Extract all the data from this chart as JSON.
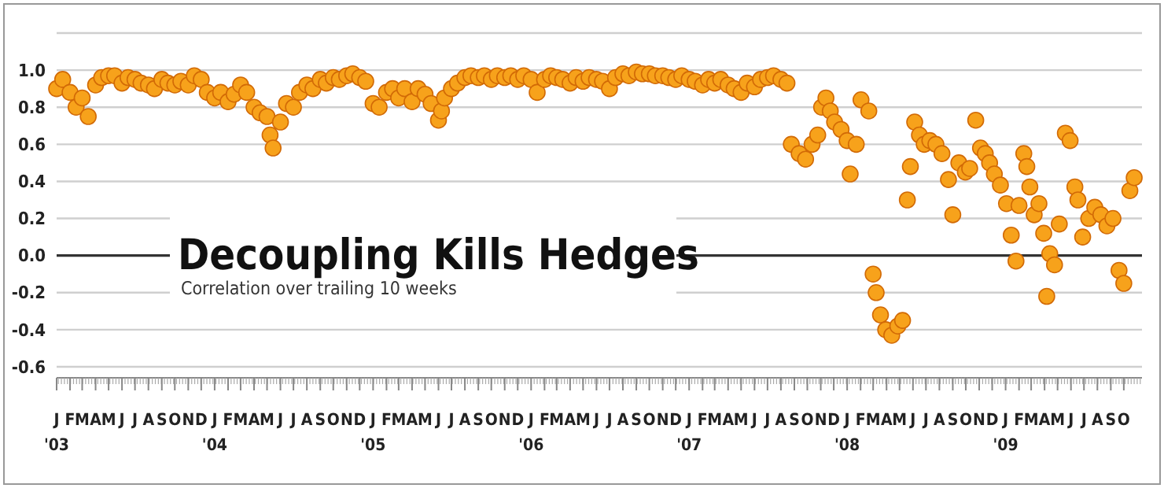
{
  "chart_data": {
    "type": "scatter",
    "title": "Decoupling Kills Hedges",
    "subtitle": "Correlation over trailing 10 weeks",
    "x": [
      "2003-01-01",
      "2003-01-15",
      "2003-02-01",
      "2003-02-15",
      "2003-03-01",
      "2003-03-15",
      "2003-04-01",
      "2003-04-15",
      "2003-05-01",
      "2003-05-15",
      "2003-06-01",
      "2003-06-15",
      "2003-07-01",
      "2003-07-15",
      "2003-08-01",
      "2003-08-15",
      "2003-09-01",
      "2003-09-15",
      "2003-10-01",
      "2003-10-15",
      "2003-11-01",
      "2003-11-15",
      "2003-12-01",
      "2003-12-15",
      "2004-01-01",
      "2004-01-15",
      "2004-02-01",
      "2004-02-15",
      "2004-03-01",
      "2004-03-15",
      "2004-04-01",
      "2004-04-15",
      "2004-05-01",
      "2004-05-08",
      "2004-05-15",
      "2004-06-01",
      "2004-06-15",
      "2004-07-01",
      "2004-07-15",
      "2004-08-01",
      "2004-08-15",
      "2004-09-01",
      "2004-09-15",
      "2004-10-01",
      "2004-10-15",
      "2004-11-01",
      "2004-11-15",
      "2004-12-01",
      "2004-12-15",
      "2005-01-01",
      "2005-01-15",
      "2005-02-01",
      "2005-02-15",
      "2005-03-01",
      "2005-03-15",
      "2005-04-01",
      "2005-04-15",
      "2005-05-01",
      "2005-05-15",
      "2005-06-01",
      "2005-06-08",
      "2005-06-15",
      "2005-07-01",
      "2005-07-15",
      "2005-08-01",
      "2005-08-15",
      "2005-09-01",
      "2005-09-15",
      "2005-10-01",
      "2005-10-15",
      "2005-11-01",
      "2005-11-15",
      "2005-12-01",
      "2005-12-15",
      "2006-01-01",
      "2006-01-15",
      "2006-02-01",
      "2006-02-15",
      "2006-03-01",
      "2006-03-15",
      "2006-04-01",
      "2006-04-15",
      "2006-05-01",
      "2006-05-15",
      "2006-06-01",
      "2006-06-15",
      "2006-07-01",
      "2006-07-15",
      "2006-08-01",
      "2006-08-15",
      "2006-09-01",
      "2006-09-15",
      "2006-10-01",
      "2006-10-15",
      "2006-11-01",
      "2006-11-15",
      "2006-12-01",
      "2006-12-15",
      "2007-01-01",
      "2007-01-15",
      "2007-02-01",
      "2007-02-15",
      "2007-03-01",
      "2007-03-15",
      "2007-04-01",
      "2007-04-15",
      "2007-05-01",
      "2007-05-15",
      "2007-06-01",
      "2007-06-15",
      "2007-07-01",
      "2007-07-15",
      "2007-08-01",
      "2007-08-15",
      "2007-08-25",
      "2007-09-12",
      "2007-09-27",
      "2007-10-12",
      "2007-10-25",
      "2007-11-03",
      "2007-11-13",
      "2007-11-23",
      "2007-12-03",
      "2007-12-18",
      "2008-01-01",
      "2008-01-08",
      "2008-01-22",
      "2008-02-02",
      "2008-02-20",
      "2008-03-01",
      "2008-03-08",
      "2008-03-18",
      "2008-03-30",
      "2008-04-13",
      "2008-04-27",
      "2008-05-08",
      "2008-05-19",
      "2008-05-26",
      "2008-06-05",
      "2008-06-16",
      "2008-06-27",
      "2008-07-10",
      "2008-07-24",
      "2008-08-07",
      "2008-08-22",
      "2008-09-01",
      "2008-09-15",
      "2008-09-30",
      "2008-10-10",
      "2008-10-24",
      "2008-11-04",
      "2008-11-15",
      "2008-11-25",
      "2008-12-06",
      "2008-12-20",
      "2009-01-03",
      "2009-01-14",
      "2009-01-25",
      "2009-02-01",
      "2009-02-12",
      "2009-02-19",
      "2009-02-26",
      "2009-03-08",
      "2009-03-19",
      "2009-03-30",
      "2009-04-06",
      "2009-04-13",
      "2009-04-24",
      "2009-05-05",
      "2009-05-19",
      "2009-05-30",
      "2009-06-10",
      "2009-06-17",
      "2009-06-28",
      "2009-07-12",
      "2009-07-26",
      "2009-08-09",
      "2009-08-23",
      "2009-09-06",
      "2009-09-20",
      "2009-10-01",
      "2009-10-15",
      "2009-10-25"
    ],
    "values": [
      0.9,
      0.95,
      0.88,
      0.8,
      0.85,
      0.75,
      0.92,
      0.96,
      0.97,
      0.97,
      0.93,
      0.96,
      0.95,
      0.93,
      0.92,
      0.9,
      0.95,
      0.93,
      0.92,
      0.94,
      0.92,
      0.97,
      0.95,
      0.88,
      0.85,
      0.88,
      0.83,
      0.87,
      0.92,
      0.88,
      0.8,
      0.77,
      0.75,
      0.65,
      0.58,
      0.72,
      0.82,
      0.8,
      0.88,
      0.92,
      0.9,
      0.95,
      0.93,
      0.96,
      0.95,
      0.97,
      0.98,
      0.96,
      0.94,
      0.82,
      0.8,
      0.88,
      0.9,
      0.85,
      0.9,
      0.83,
      0.9,
      0.87,
      0.82,
      0.73,
      0.78,
      0.85,
      0.9,
      0.93,
      0.96,
      0.97,
      0.96,
      0.97,
      0.95,
      0.97,
      0.96,
      0.97,
      0.95,
      0.97,
      0.95,
      0.88,
      0.95,
      0.97,
      0.96,
      0.95,
      0.93,
      0.96,
      0.94,
      0.96,
      0.95,
      0.94,
      0.9,
      0.96,
      0.98,
      0.97,
      0.99,
      0.98,
      0.98,
      0.97,
      0.97,
      0.96,
      0.95,
      0.97,
      0.95,
      0.94,
      0.92,
      0.95,
      0.93,
      0.95,
      0.92,
      0.9,
      0.88,
      0.93,
      0.91,
      0.95,
      0.96,
      0.97,
      0.95,
      0.93,
      0.6,
      0.55,
      0.52,
      0.6,
      0.65,
      0.8,
      0.85,
      0.78,
      0.72,
      0.68,
      0.62,
      0.44,
      0.6,
      0.84,
      0.78,
      -0.1,
      -0.2,
      -0.32,
      -0.4,
      -0.43,
      -0.38,
      -0.35,
      0.3,
      0.48,
      0.72,
      0.65,
      0.6,
      0.62,
      0.6,
      0.55,
      0.41,
      0.22,
      0.5,
      0.45,
      0.47,
      0.73,
      0.58,
      0.55,
      0.5,
      0.44,
      0.38,
      0.28,
      0.11,
      -0.03,
      0.27,
      0.55,
      0.48,
      0.37,
      0.22,
      0.28,
      0.12,
      -0.22,
      0.01,
      -0.05,
      0.17,
      0.66,
      0.62,
      0.37,
      0.3,
      0.1,
      0.2,
      0.26,
      0.22,
      0.16,
      0.2,
      -0.08,
      -0.15,
      0.35,
      0.42
    ],
    "color": "#f7a21b",
    "marker": "circle",
    "xlim": [
      "2003-01-01",
      "2009-11-12"
    ],
    "xticks": [
      {
        "value": "2003-01-01",
        "label": "J\n'03"
      },
      {
        "value": "2003-02-01",
        "label": "F"
      },
      {
        "value": "2003-03-01",
        "label": "M"
      },
      {
        "value": "2003-04-01",
        "label": "A"
      },
      {
        "value": "2003-05-01",
        "label": "M"
      },
      {
        "value": "2003-06-01",
        "label": "J"
      },
      {
        "value": "2003-07-01",
        "label": "J"
      },
      {
        "value": "2003-08-01",
        "label": "A"
      },
      {
        "value": "2003-09-01",
        "label": "S"
      },
      {
        "value": "2003-10-01",
        "label": "O"
      },
      {
        "value": "2003-11-01",
        "label": "N"
      },
      {
        "value": "2003-12-01",
        "label": "D"
      },
      {
        "value": "2004-01-01",
        "label": "J\n'04"
      },
      {
        "value": "2004-02-01",
        "label": "F"
      },
      {
        "value": "2004-03-01",
        "label": "M"
      },
      {
        "value": "2004-04-01",
        "label": "A"
      },
      {
        "value": "2004-05-01",
        "label": "M"
      },
      {
        "value": "2004-06-01",
        "label": "J"
      },
      {
        "value": "2004-07-01",
        "label": "J"
      },
      {
        "value": "2004-08-01",
        "label": "A"
      },
      {
        "value": "2004-09-01",
        "label": "S"
      },
      {
        "value": "2004-10-01",
        "label": "O"
      },
      {
        "value": "2004-11-01",
        "label": "N"
      },
      {
        "value": "2004-12-01",
        "label": "D"
      },
      {
        "value": "2005-01-01",
        "label": "J\n'05"
      },
      {
        "value": "2005-02-01",
        "label": "F"
      },
      {
        "value": "2005-03-01",
        "label": "M"
      },
      {
        "value": "2005-04-01",
        "label": "A"
      },
      {
        "value": "2005-05-01",
        "label": "M"
      },
      {
        "value": "2005-06-01",
        "label": "J"
      },
      {
        "value": "2005-07-01",
        "label": "J"
      },
      {
        "value": "2005-08-01",
        "label": "A"
      },
      {
        "value": "2005-09-01",
        "label": "S"
      },
      {
        "value": "2005-10-01",
        "label": "O"
      },
      {
        "value": "2005-11-01",
        "label": "N"
      },
      {
        "value": "2005-12-01",
        "label": "D"
      },
      {
        "value": "2006-01-01",
        "label": "J\n'06"
      },
      {
        "value": "2006-02-01",
        "label": "F"
      },
      {
        "value": "2006-03-01",
        "label": "M"
      },
      {
        "value": "2006-04-01",
        "label": "A"
      },
      {
        "value": "2006-05-01",
        "label": "M"
      },
      {
        "value": "2006-06-01",
        "label": "J"
      },
      {
        "value": "2006-07-01",
        "label": "J"
      },
      {
        "value": "2006-08-01",
        "label": "A"
      },
      {
        "value": "2006-09-01",
        "label": "S"
      },
      {
        "value": "2006-10-01",
        "label": "O"
      },
      {
        "value": "2006-11-01",
        "label": "N"
      },
      {
        "value": "2006-12-01",
        "label": "D"
      },
      {
        "value": "2007-01-01",
        "label": "J\n'07"
      },
      {
        "value": "2007-02-01",
        "label": "F"
      },
      {
        "value": "2007-03-01",
        "label": "M"
      },
      {
        "value": "2007-04-01",
        "label": "A"
      },
      {
        "value": "2007-05-01",
        "label": "M"
      },
      {
        "value": "2007-06-01",
        "label": "J"
      },
      {
        "value": "2007-07-01",
        "label": "J"
      },
      {
        "value": "2007-08-01",
        "label": "A"
      },
      {
        "value": "2007-09-01",
        "label": "S"
      },
      {
        "value": "2007-10-01",
        "label": "O"
      },
      {
        "value": "2007-11-01",
        "label": "N"
      },
      {
        "value": "2007-12-01",
        "label": "D"
      },
      {
        "value": "2008-01-01",
        "label": "J\n'08"
      },
      {
        "value": "2008-02-01",
        "label": "F"
      },
      {
        "value": "2008-03-01",
        "label": "M"
      },
      {
        "value": "2008-04-01",
        "label": "A"
      },
      {
        "value": "2008-05-01",
        "label": "M"
      },
      {
        "value": "2008-06-01",
        "label": "J"
      },
      {
        "value": "2008-07-01",
        "label": "J"
      },
      {
        "value": "2008-08-01",
        "label": "A"
      },
      {
        "value": "2008-09-01",
        "label": "S"
      },
      {
        "value": "2008-10-01",
        "label": "O"
      },
      {
        "value": "2008-11-01",
        "label": "N"
      },
      {
        "value": "2008-12-01",
        "label": "D"
      },
      {
        "value": "2009-01-01",
        "label": "J\n'09"
      },
      {
        "value": "2009-02-01",
        "label": "F"
      },
      {
        "value": "2009-03-01",
        "label": "M"
      },
      {
        "value": "2009-04-01",
        "label": "A"
      },
      {
        "value": "2009-05-01",
        "label": "M"
      },
      {
        "value": "2009-06-01",
        "label": "J"
      },
      {
        "value": "2009-07-01",
        "label": "J"
      },
      {
        "value": "2009-08-01",
        "label": "A"
      },
      {
        "value": "2009-09-01",
        "label": "S"
      },
      {
        "value": "2009-10-01",
        "label": "O"
      }
    ],
    "ylim": [
      -0.6,
      1.2
    ],
    "yticks": [
      {
        "value": -0.6,
        "label": "-0.6"
      },
      {
        "value": -0.4,
        "label": "-0.4"
      },
      {
        "value": -0.2,
        "label": "-0.2"
      },
      {
        "value": 0,
        "label": "0.0"
      },
      {
        "value": 0.2,
        "label": "0.2"
      },
      {
        "value": 0.4,
        "label": "0.4"
      },
      {
        "value": 0.6,
        "label": "0.6"
      },
      {
        "value": 0.8,
        "label": "0.8"
      },
      {
        "value": 1,
        "label": "1.0"
      },
      {
        "value": 1.2,
        "label": null
      }
    ],
    "grid": "y",
    "ref_lines": [
      {
        "axis": "y",
        "value": 0,
        "color": "#333333"
      }
    ]
  }
}
